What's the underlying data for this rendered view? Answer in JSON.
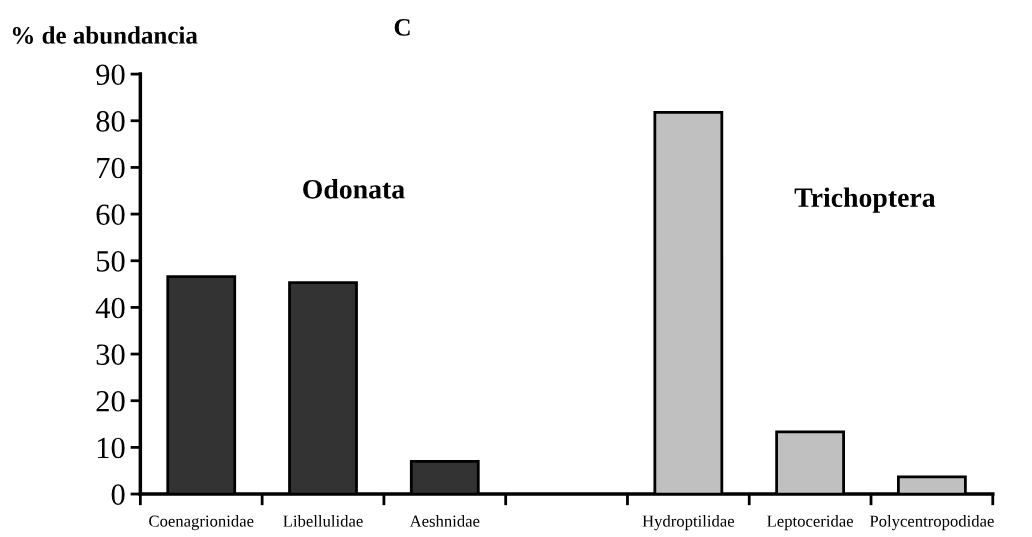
{
  "chart_data": {
    "type": "bar",
    "title": "C",
    "ylabel": "% de abundancia",
    "categories": [
      "Coenagrionidae",
      "Libellulidae",
      "Aeshnidae",
      null,
      "Hydroptilidae",
      "Leptoceridae",
      "Polycentropodidae"
    ],
    "values": [
      46.6,
      45.3,
      7.0,
      null,
      81.8,
      13.3,
      3.7
    ],
    "colors": [
      "#333333",
      "#333333",
      "#333333",
      null,
      "#c0c0c0",
      "#c0c0c0",
      "#c0c0c0"
    ],
    "annotations": [
      "Odonata",
      "Trichoptera"
    ],
    "ylim": [
      0,
      90
    ],
    "yticks": [
      0,
      10,
      20,
      30,
      40,
      50,
      60,
      70,
      80,
      90
    ],
    "grid": false,
    "legend": false
  }
}
